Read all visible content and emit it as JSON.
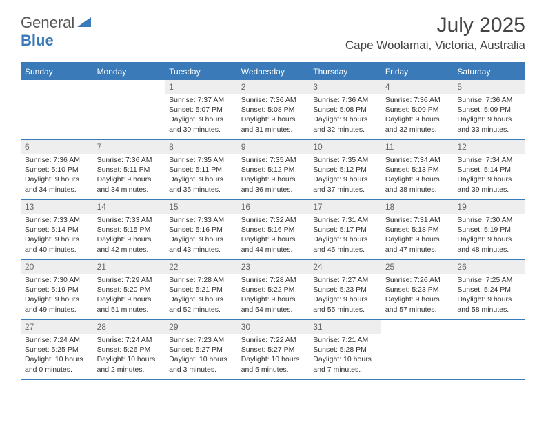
{
  "logo": {
    "text1": "General",
    "text2": "Blue"
  },
  "title": "July 2025",
  "location": "Cape Woolamai, Victoria, Australia",
  "colors": {
    "accent": "#3a7ab8",
    "header_bg": "#eeeeee",
    "text": "#333333",
    "muted": "#666666"
  },
  "day_names": [
    "Sunday",
    "Monday",
    "Tuesday",
    "Wednesday",
    "Thursday",
    "Friday",
    "Saturday"
  ],
  "weeks": [
    [
      null,
      null,
      {
        "n": "1",
        "sr": "7:37 AM",
        "ss": "5:07 PM",
        "dl": "9 hours and 30 minutes."
      },
      {
        "n": "2",
        "sr": "7:36 AM",
        "ss": "5:08 PM",
        "dl": "9 hours and 31 minutes."
      },
      {
        "n": "3",
        "sr": "7:36 AM",
        "ss": "5:08 PM",
        "dl": "9 hours and 32 minutes."
      },
      {
        "n": "4",
        "sr": "7:36 AM",
        "ss": "5:09 PM",
        "dl": "9 hours and 32 minutes."
      },
      {
        "n": "5",
        "sr": "7:36 AM",
        "ss": "5:09 PM",
        "dl": "9 hours and 33 minutes."
      }
    ],
    [
      {
        "n": "6",
        "sr": "7:36 AM",
        "ss": "5:10 PM",
        "dl": "9 hours and 34 minutes."
      },
      {
        "n": "7",
        "sr": "7:36 AM",
        "ss": "5:11 PM",
        "dl": "9 hours and 34 minutes."
      },
      {
        "n": "8",
        "sr": "7:35 AM",
        "ss": "5:11 PM",
        "dl": "9 hours and 35 minutes."
      },
      {
        "n": "9",
        "sr": "7:35 AM",
        "ss": "5:12 PM",
        "dl": "9 hours and 36 minutes."
      },
      {
        "n": "10",
        "sr": "7:35 AM",
        "ss": "5:12 PM",
        "dl": "9 hours and 37 minutes."
      },
      {
        "n": "11",
        "sr": "7:34 AM",
        "ss": "5:13 PM",
        "dl": "9 hours and 38 minutes."
      },
      {
        "n": "12",
        "sr": "7:34 AM",
        "ss": "5:14 PM",
        "dl": "9 hours and 39 minutes."
      }
    ],
    [
      {
        "n": "13",
        "sr": "7:33 AM",
        "ss": "5:14 PM",
        "dl": "9 hours and 40 minutes."
      },
      {
        "n": "14",
        "sr": "7:33 AM",
        "ss": "5:15 PM",
        "dl": "9 hours and 42 minutes."
      },
      {
        "n": "15",
        "sr": "7:33 AM",
        "ss": "5:16 PM",
        "dl": "9 hours and 43 minutes."
      },
      {
        "n": "16",
        "sr": "7:32 AM",
        "ss": "5:16 PM",
        "dl": "9 hours and 44 minutes."
      },
      {
        "n": "17",
        "sr": "7:31 AM",
        "ss": "5:17 PM",
        "dl": "9 hours and 45 minutes."
      },
      {
        "n": "18",
        "sr": "7:31 AM",
        "ss": "5:18 PM",
        "dl": "9 hours and 47 minutes."
      },
      {
        "n": "19",
        "sr": "7:30 AM",
        "ss": "5:19 PM",
        "dl": "9 hours and 48 minutes."
      }
    ],
    [
      {
        "n": "20",
        "sr": "7:30 AM",
        "ss": "5:19 PM",
        "dl": "9 hours and 49 minutes."
      },
      {
        "n": "21",
        "sr": "7:29 AM",
        "ss": "5:20 PM",
        "dl": "9 hours and 51 minutes."
      },
      {
        "n": "22",
        "sr": "7:28 AM",
        "ss": "5:21 PM",
        "dl": "9 hours and 52 minutes."
      },
      {
        "n": "23",
        "sr": "7:28 AM",
        "ss": "5:22 PM",
        "dl": "9 hours and 54 minutes."
      },
      {
        "n": "24",
        "sr": "7:27 AM",
        "ss": "5:23 PM",
        "dl": "9 hours and 55 minutes."
      },
      {
        "n": "25",
        "sr": "7:26 AM",
        "ss": "5:23 PM",
        "dl": "9 hours and 57 minutes."
      },
      {
        "n": "26",
        "sr": "7:25 AM",
        "ss": "5:24 PM",
        "dl": "9 hours and 58 minutes."
      }
    ],
    [
      {
        "n": "27",
        "sr": "7:24 AM",
        "ss": "5:25 PM",
        "dl": "10 hours and 0 minutes."
      },
      {
        "n": "28",
        "sr": "7:24 AM",
        "ss": "5:26 PM",
        "dl": "10 hours and 2 minutes."
      },
      {
        "n": "29",
        "sr": "7:23 AM",
        "ss": "5:27 PM",
        "dl": "10 hours and 3 minutes."
      },
      {
        "n": "30",
        "sr": "7:22 AM",
        "ss": "5:27 PM",
        "dl": "10 hours and 5 minutes."
      },
      {
        "n": "31",
        "sr": "7:21 AM",
        "ss": "5:28 PM",
        "dl": "10 hours and 7 minutes."
      },
      null,
      null
    ]
  ],
  "labels": {
    "sunrise": "Sunrise:",
    "sunset": "Sunset:",
    "daylight": "Daylight:"
  }
}
